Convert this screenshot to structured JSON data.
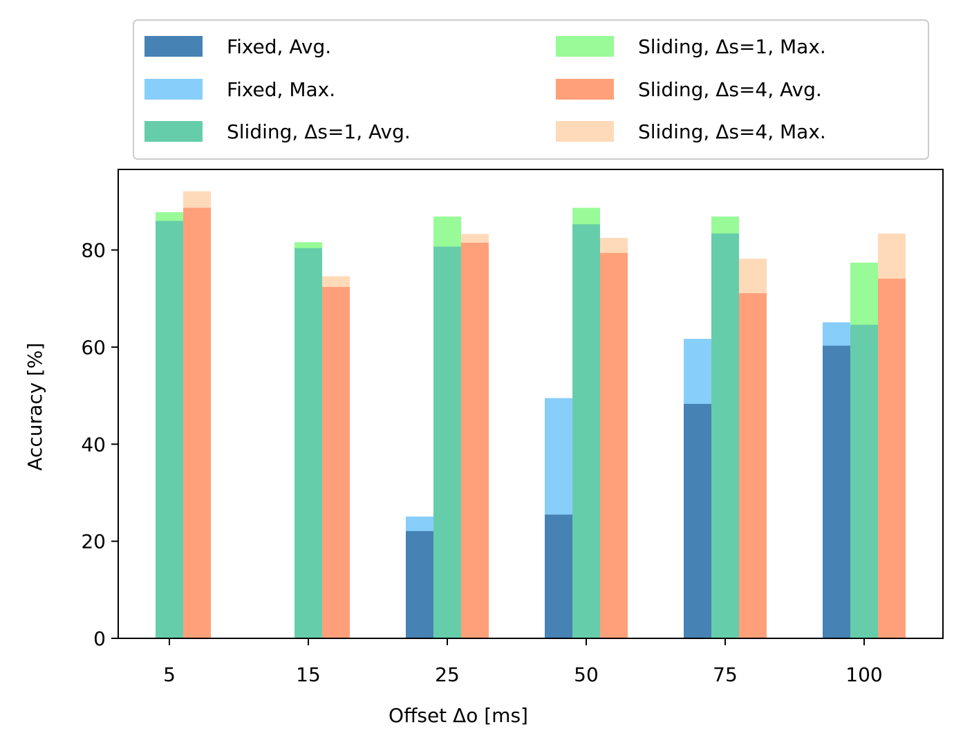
{
  "chart_data": {
    "type": "bar",
    "title": "",
    "xlabel": "Offset Δo [ms]",
    "ylabel": "Accuracy [%]",
    "categories": [
      "5",
      "15",
      "25",
      "50",
      "75",
      "100"
    ],
    "ylim": [
      0,
      96.6
    ],
    "yticks": [
      "0",
      "20",
      "40",
      "60",
      "80"
    ],
    "grid": false,
    "legend_position": "top, outside plot, two columns",
    "groups": [
      {
        "name": "Fixed",
        "avg_series": "Fixed, Avg.",
        "max_series": "Fixed, Max.",
        "avg_values": [
          null,
          null,
          22.1,
          25.5,
          48.3,
          60.3
        ],
        "max_values": [
          null,
          null,
          25.1,
          49.5,
          61.7,
          65.1
        ]
      },
      {
        "name": "Sliding, Δs=1",
        "avg_series": "Sliding, Δs=1, Avg.",
        "max_series": "Sliding, Δs=1, Max.",
        "avg_values": [
          86.0,
          80.4,
          80.7,
          85.3,
          83.4,
          64.6
        ],
        "max_values": [
          87.8,
          81.6,
          86.9,
          88.7,
          86.9,
          77.4
        ]
      },
      {
        "name": "Sliding, Δs=4",
        "avg_series": "Sliding, Δs=4, Avg.",
        "max_series": "Sliding, Δs=4, Max.",
        "avg_values": [
          88.7,
          72.4,
          81.5,
          79.4,
          71.1,
          74.1
        ],
        "max_values": [
          92.1,
          74.6,
          83.3,
          82.5,
          78.2,
          83.4
        ]
      }
    ],
    "series": [
      {
        "name": "Fixed, Avg.",
        "color": "#4682b4"
      },
      {
        "name": "Fixed, Max.",
        "color": "#87cefa"
      },
      {
        "name": "Sliding, Δs=1, Avg.",
        "color": "#66cdaa"
      },
      {
        "name": "Sliding, Δs=1, Max.",
        "color": "#98fb98"
      },
      {
        "name": "Sliding, Δs=4, Avg.",
        "color": "#ffa07a"
      },
      {
        "name": "Sliding, Δs=4, Max.",
        "color": "#ffdab9"
      }
    ]
  }
}
